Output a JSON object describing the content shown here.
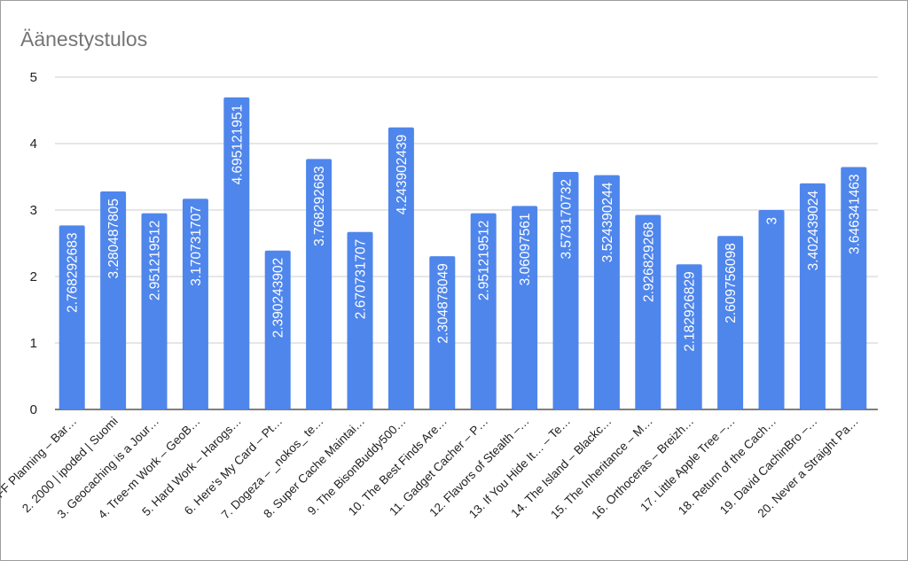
{
  "chart_data": {
    "type": "bar",
    "title": "Äänestystulos",
    "xlabel": "",
    "ylabel": "",
    "ylim": [
      0,
      5
    ],
    "yticks": [
      "0",
      "1",
      "2",
      "3",
      "4",
      "5"
    ],
    "grid": true,
    "bar_color": "#4f86ec",
    "categories": [
      "FF Planning – Bar…",
      "2. 2000 | ipoded | Suomi",
      "3. Geocaching is a Jour…",
      "4. Tree-m Work – GeoB…",
      "5. Hard Work – Harogs…",
      "6. Here's My Card – Pt…",
      "7. Dogeza – _nokos_ te…",
      "8. Super Cache Maintai…",
      "9. The BisonBuddy500…",
      "10. The Best Finds Are…",
      "11. Gadget Cacher – P…",
      "12. Flavors of Stealth –…",
      "13. If You Hide It… – Te…",
      "14. The Island – Blackc…",
      "15. The Inheritance – M…",
      "16. Orthoceras – Breizh…",
      "17. Little Apple Tree –…",
      "18. Return of the Cach…",
      "19. David CachinBro –…",
      "20. Never a Straight Pa…"
    ],
    "values": [
      2.768292683,
      3.280487805,
      2.951219512,
      3.170731707,
      4.695121951,
      2.390243902,
      3.768292683,
      2.670731707,
      4.243902439,
      2.304878049,
      2.951219512,
      3.06097561,
      3.573170732,
      3.524390244,
      2.926829268,
      2.182926829,
      2.609756098,
      3,
      3.402439024,
      3.646341463
    ],
    "data_labels": [
      "2.768292683",
      "3.280487805",
      "2.951219512",
      "3.170731707",
      "4.695121951",
      "2.390243902",
      "3.768292683",
      "2.670731707",
      "4.243902439",
      "2.304878049",
      "2.951219512",
      "3.06097561",
      "3.573170732",
      "3.524390244",
      "2.926829268",
      "2.182926829",
      "2.609756098",
      "3",
      "3.402439024",
      "3.646341463"
    ]
  }
}
